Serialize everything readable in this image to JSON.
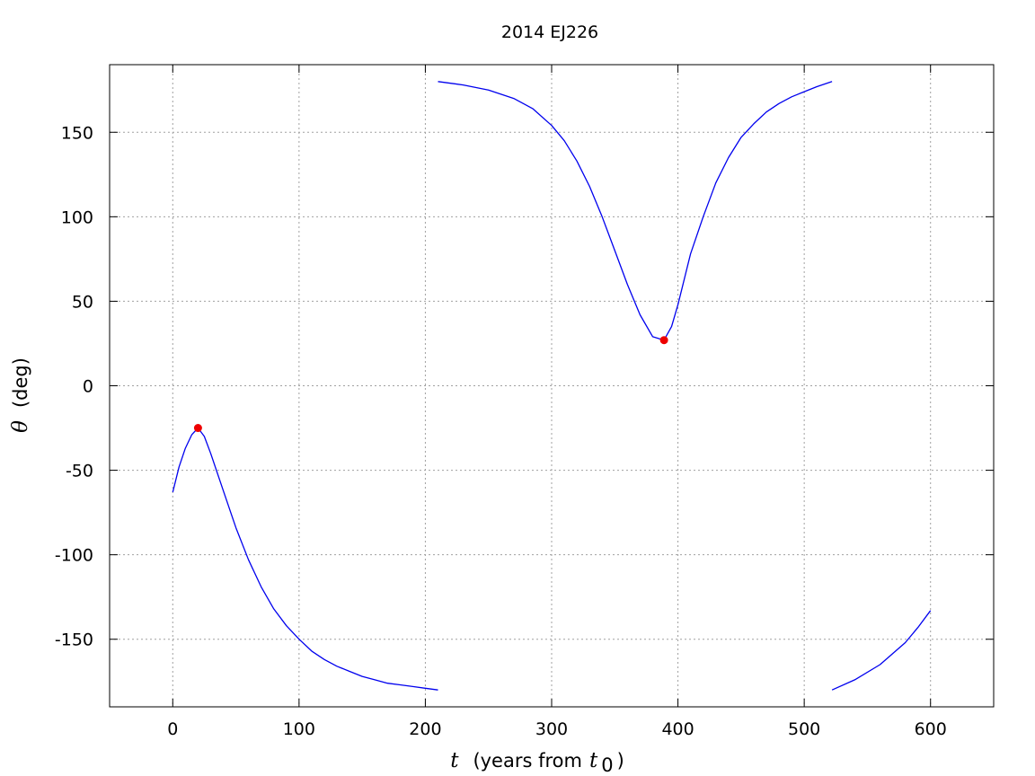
{
  "chart_data": {
    "type": "line",
    "title": "2014 EJ226",
    "xlabel": {
      "symbol": "t",
      "text": "(years from",
      "sub_symbol": "t",
      "subscript": "0",
      "close": ")"
    },
    "ylabel": {
      "symbol": "θ",
      "text": "(deg)"
    },
    "xlim": [
      -50,
      650
    ],
    "ylim": [
      -190,
      190
    ],
    "xticks": [
      0,
      100,
      200,
      300,
      400,
      500,
      600
    ],
    "yticks": [
      -150,
      -100,
      -50,
      0,
      50,
      100,
      150
    ],
    "grid": true,
    "line_color": "#0000ee",
    "marker_color": "#ee0000",
    "series": [
      {
        "segments": [
          [
            [
              0,
              -63
            ],
            [
              5,
              -48
            ],
            [
              10,
              -37
            ],
            [
              15,
              -29
            ],
            [
              20,
              -25
            ],
            [
              25,
              -30
            ],
            [
              30,
              -40
            ],
            [
              40,
              -62
            ],
            [
              50,
              -84
            ],
            [
              60,
              -103
            ],
            [
              70,
              -119
            ],
            [
              80,
              -132
            ],
            [
              90,
              -142
            ],
            [
              100,
              -150
            ],
            [
              110,
              -157
            ],
            [
              120,
              -162
            ],
            [
              130,
              -166
            ],
            [
              140,
              -169
            ],
            [
              150,
              -172
            ],
            [
              160,
              -174
            ],
            [
              170,
              -176
            ],
            [
              180,
              -177
            ],
            [
              190,
              -178
            ],
            [
              200,
              -179
            ],
            [
              210,
              -180
            ]
          ],
          [
            [
              210,
              180
            ],
            [
              230,
              178
            ],
            [
              250,
              175
            ],
            [
              270,
              170
            ],
            [
              285,
              164
            ],
            [
              300,
              154
            ],
            [
              310,
              145
            ],
            [
              320,
              133
            ],
            [
              330,
              118
            ],
            [
              340,
              100
            ],
            [
              350,
              80
            ],
            [
              360,
              60
            ],
            [
              370,
              42
            ],
            [
              380,
              29
            ],
            [
              389,
              27
            ],
            [
              395,
              35
            ],
            [
              400,
              48
            ],
            [
              410,
              78
            ],
            [
              420,
              100
            ],
            [
              430,
              120
            ],
            [
              440,
              135
            ],
            [
              450,
              147
            ],
            [
              460,
              155
            ],
            [
              470,
              162
            ],
            [
              480,
              167
            ],
            [
              490,
              171
            ],
            [
              500,
              174
            ],
            [
              510,
              177
            ],
            [
              522,
              180
            ]
          ],
          [
            [
              522,
              -180
            ],
            [
              540,
              -174
            ],
            [
              560,
              -165
            ],
            [
              580,
              -152
            ],
            [
              590,
              -143
            ],
            [
              600,
              -133
            ]
          ]
        ]
      }
    ],
    "markers": [
      [
        20,
        -25
      ],
      [
        389,
        27
      ]
    ]
  }
}
